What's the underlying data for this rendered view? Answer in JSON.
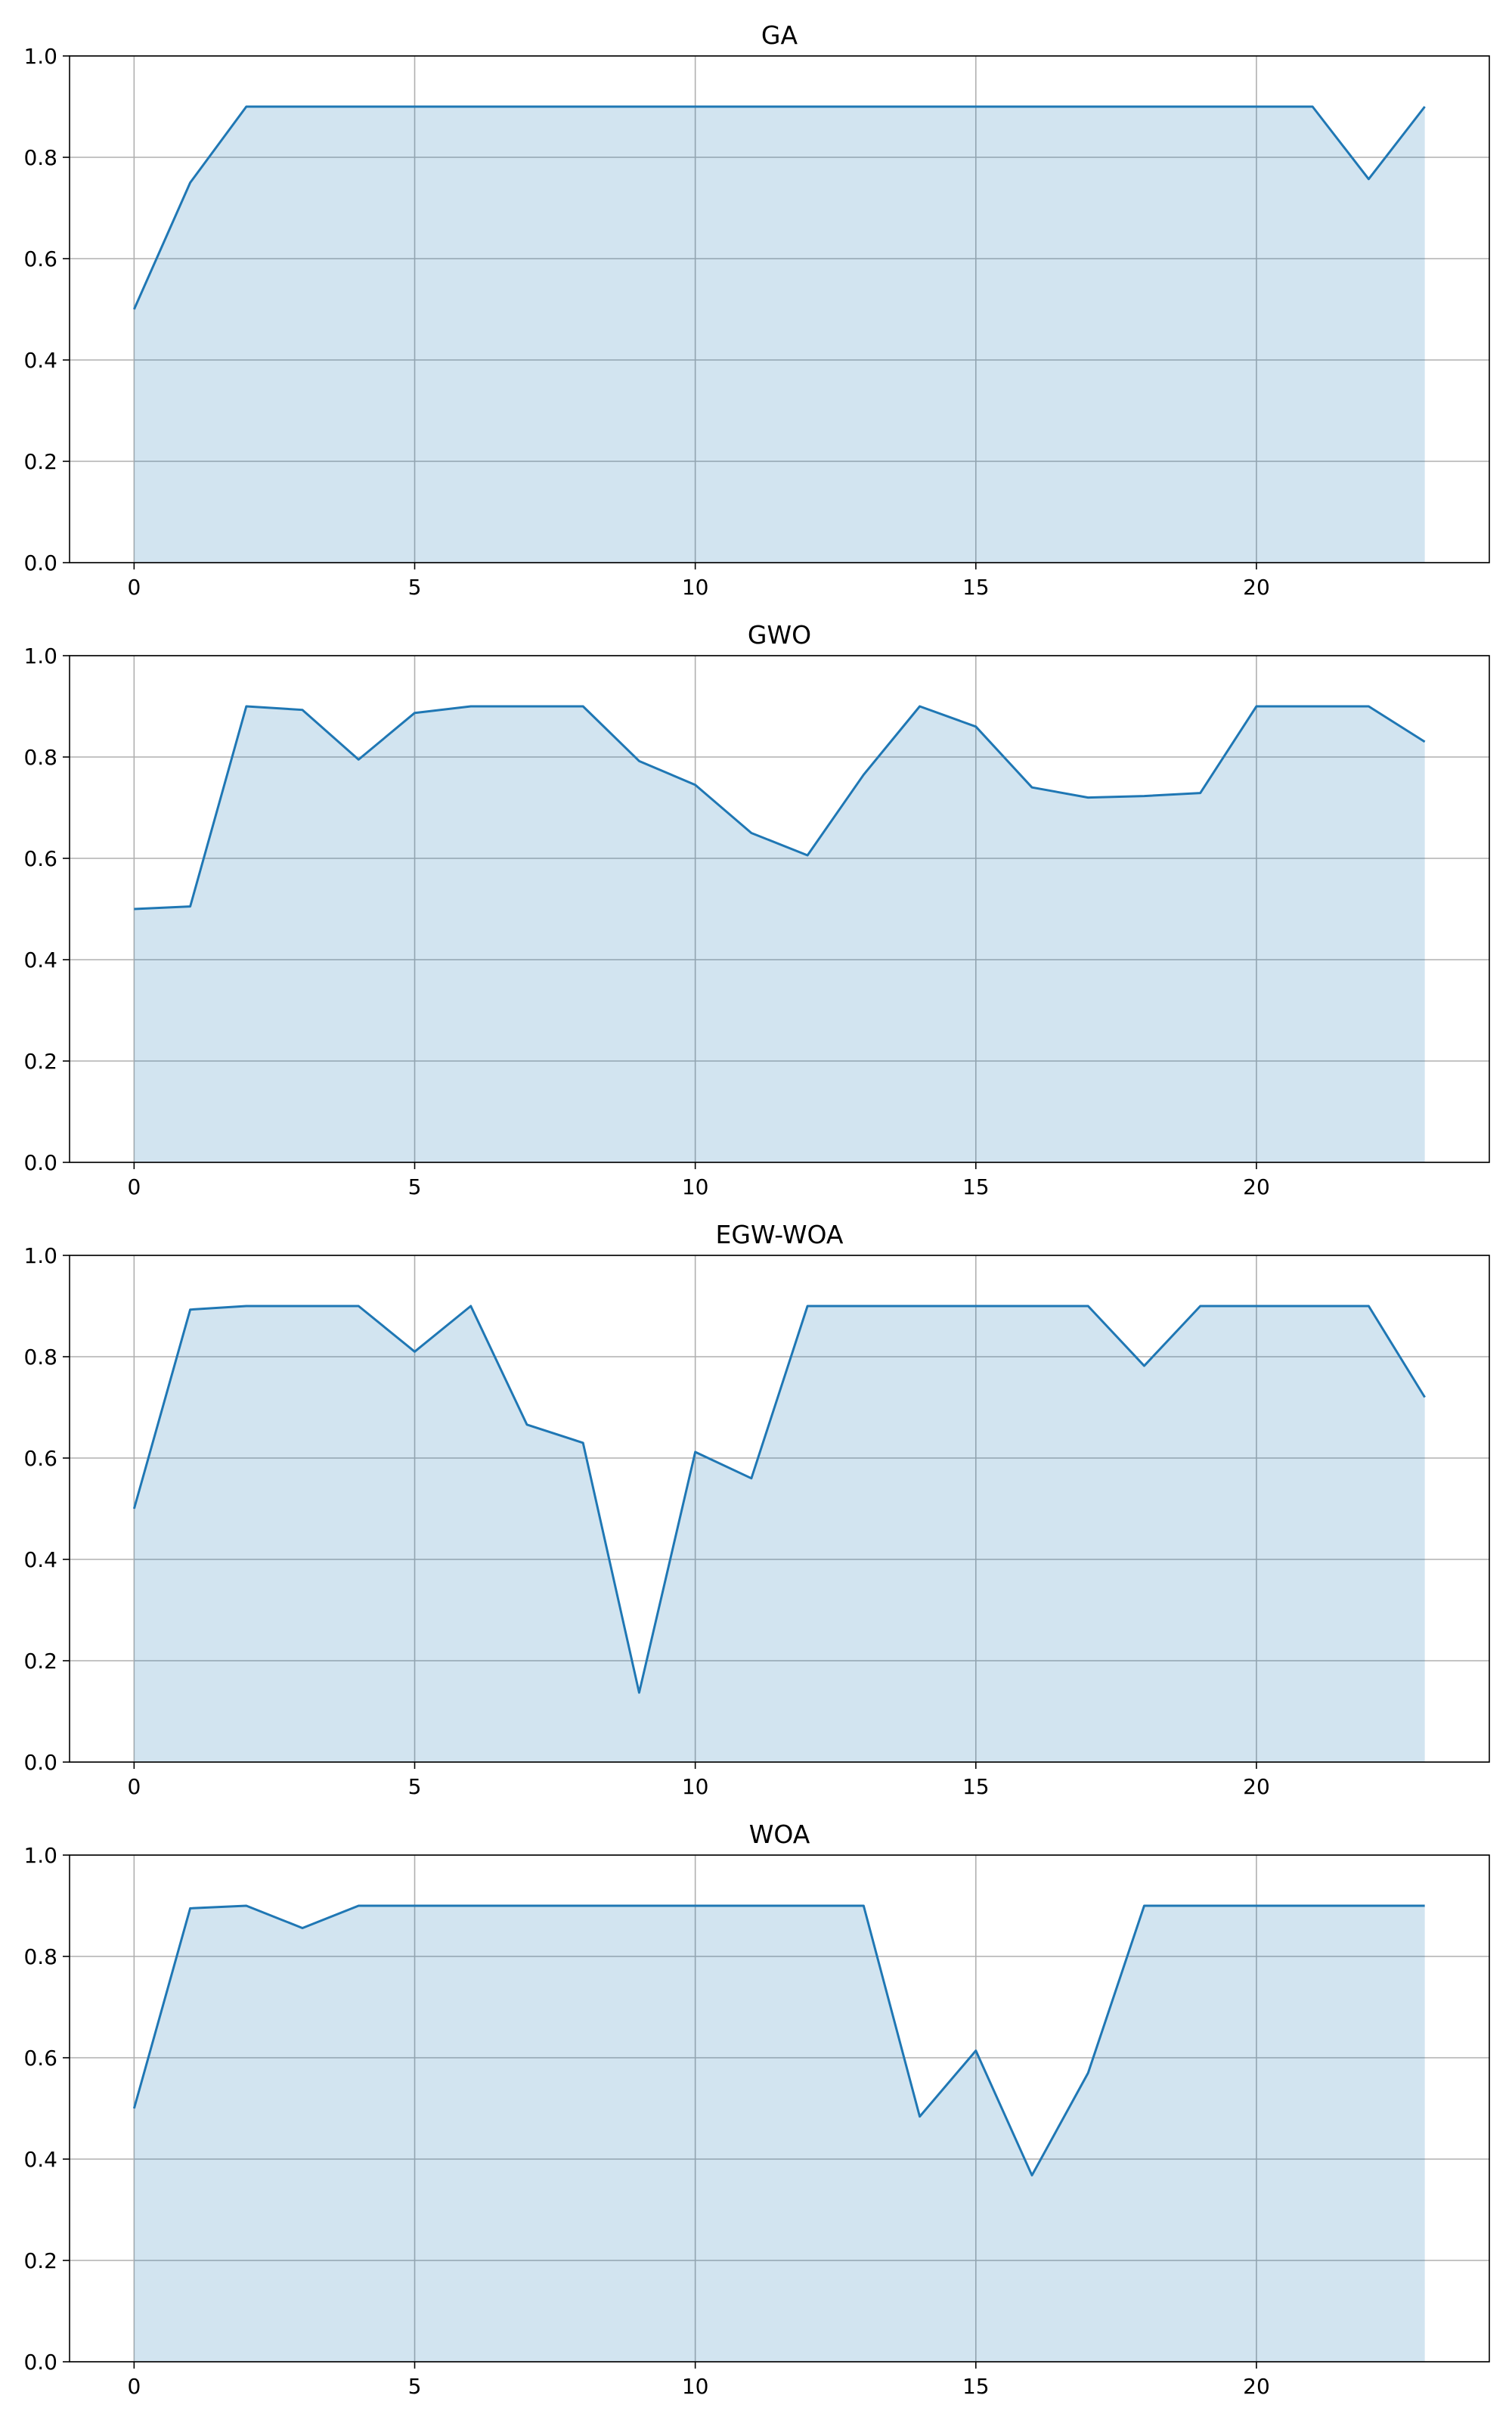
{
  "style": {
    "line_color": "#1f77b4",
    "fill_color": "#1f77b4",
    "fill_opacity": 0.2,
    "grid_color": "#b0b0b0"
  },
  "chart_data": [
    {
      "type": "area",
      "title": "GA",
      "xlabel": "",
      "ylabel": "",
      "xlim": [
        -1.15,
        24.15
      ],
      "ylim": [
        0,
        1.0
      ],
      "xticks": [
        0,
        5,
        10,
        15,
        20
      ],
      "yticks": [
        0.0,
        0.2,
        0.4,
        0.6,
        0.8,
        1.0
      ],
      "xtick_labels": [
        "0",
        "5",
        "10",
        "15",
        "20"
      ],
      "ytick_labels": [
        "0.0",
        "0.2",
        "0.4",
        "0.6",
        "0.8",
        "1.0"
      ],
      "grid": true,
      "x": [
        0,
        1,
        2,
        3,
        4,
        5,
        6,
        7,
        8,
        9,
        10,
        11,
        12,
        13,
        14,
        15,
        16,
        17,
        18,
        19,
        20,
        21,
        22,
        23
      ],
      "series": [
        {
          "values": [
            0.5,
            0.75,
            0.9,
            0.9,
            0.9,
            0.9,
            0.9,
            0.9,
            0.9,
            0.9,
            0.9,
            0.9,
            0.9,
            0.9,
            0.9,
            0.9,
            0.9,
            0.9,
            0.9,
            0.9,
            0.9,
            0.9,
            0.757,
            0.9
          ]
        }
      ]
    },
    {
      "type": "area",
      "title": "GWO",
      "xlabel": "",
      "ylabel": "",
      "xlim": [
        -1.15,
        24.15
      ],
      "ylim": [
        0,
        1.0
      ],
      "xticks": [
        0,
        5,
        10,
        15,
        20
      ],
      "yticks": [
        0.0,
        0.2,
        0.4,
        0.6,
        0.8,
        1.0
      ],
      "xtick_labels": [
        "0",
        "5",
        "10",
        "15",
        "20"
      ],
      "ytick_labels": [
        "0.0",
        "0.2",
        "0.4",
        "0.6",
        "0.8",
        "1.0"
      ],
      "grid": true,
      "x": [
        0,
        1,
        2,
        3,
        4,
        5,
        6,
        7,
        8,
        9,
        10,
        11,
        12,
        13,
        14,
        15,
        16,
        17,
        18,
        19,
        20,
        21,
        22,
        23
      ],
      "series": [
        {
          "values": [
            0.5,
            0.505,
            0.9,
            0.893,
            0.795,
            0.887,
            0.9,
            0.9,
            0.9,
            0.792,
            0.745,
            0.65,
            0.606,
            0.765,
            0.9,
            0.86,
            0.74,
            0.72,
            0.723,
            0.729,
            0.9,
            0.9,
            0.9,
            0.83
          ]
        }
      ]
    },
    {
      "type": "area",
      "title": "EGW-WOA",
      "xlabel": "",
      "ylabel": "",
      "xlim": [
        -1.15,
        24.15
      ],
      "ylim": [
        0,
        1.0
      ],
      "xticks": [
        0,
        5,
        10,
        15,
        20
      ],
      "yticks": [
        0.0,
        0.2,
        0.4,
        0.6,
        0.8,
        1.0
      ],
      "xtick_labels": [
        "0",
        "5",
        "10",
        "15",
        "20"
      ],
      "ytick_labels": [
        "0.0",
        "0.2",
        "0.4",
        "0.6",
        "0.8",
        "1.0"
      ],
      "grid": true,
      "x": [
        0,
        1,
        2,
        3,
        4,
        5,
        6,
        7,
        8,
        9,
        10,
        11,
        12,
        13,
        14,
        15,
        16,
        17,
        18,
        19,
        20,
        21,
        22,
        23
      ],
      "series": [
        {
          "values": [
            0.5,
            0.893,
            0.9,
            0.9,
            0.9,
            0.81,
            0.9,
            0.666,
            0.63,
            0.137,
            0.612,
            0.56,
            0.9,
            0.9,
            0.9,
            0.9,
            0.9,
            0.9,
            0.782,
            0.9,
            0.9,
            0.9,
            0.9,
            0.72
          ]
        }
      ]
    },
    {
      "type": "area",
      "title": "WOA",
      "xlabel": "",
      "ylabel": "",
      "xlim": [
        -1.15,
        24.15
      ],
      "ylim": [
        0,
        1.0
      ],
      "xticks": [
        0,
        5,
        10,
        15,
        20
      ],
      "yticks": [
        0.0,
        0.2,
        0.4,
        0.6,
        0.8,
        1.0
      ],
      "xtick_labels": [
        "0",
        "5",
        "10",
        "15",
        "20"
      ],
      "ytick_labels": [
        "0.0",
        "0.2",
        "0.4",
        "0.6",
        "0.8",
        "1.0"
      ],
      "grid": true,
      "x": [
        0,
        1,
        2,
        3,
        4,
        5,
        6,
        7,
        8,
        9,
        10,
        11,
        12,
        13,
        14,
        15,
        16,
        17,
        18,
        19,
        20,
        21,
        22,
        23
      ],
      "series": [
        {
          "values": [
            0.5,
            0.895,
            0.9,
            0.856,
            0.9,
            0.9,
            0.9,
            0.9,
            0.9,
            0.9,
            0.9,
            0.9,
            0.9,
            0.9,
            0.484,
            0.614,
            0.368,
            0.57,
            0.9,
            0.9,
            0.9,
            0.9,
            0.9,
            0.9
          ]
        }
      ]
    }
  ]
}
